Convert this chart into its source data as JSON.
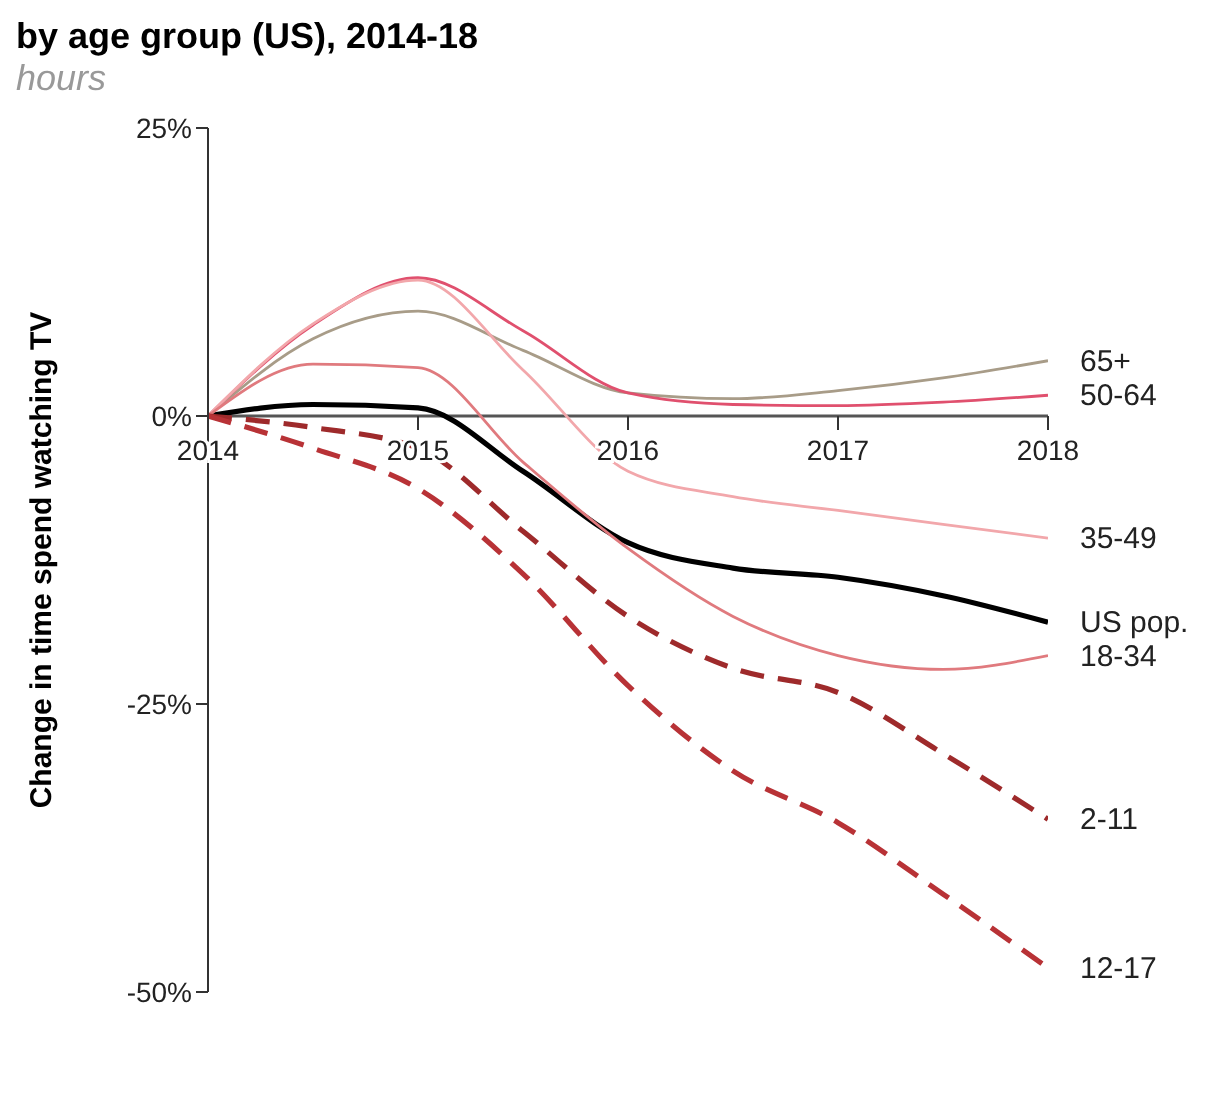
{
  "chart_data": {
    "type": "line",
    "title": "by age group (US), 2014-18",
    "subtitle": "hours",
    "ylabel": "Change in time spend watching TV",
    "x": [
      2014,
      2014.5,
      2015,
      2015.5,
      2016,
      2016.5,
      2017,
      2017.5,
      2018
    ],
    "xlim": [
      2014,
      2018
    ],
    "xticks": [
      2014,
      2015,
      2016,
      2017,
      2018
    ],
    "ylim": [
      -50,
      25
    ],
    "yticks": [
      {
        "value": -50,
        "label": "-50%"
      },
      {
        "value": -25,
        "label": "-25%"
      },
      {
        "value": 0,
        "label": "0%"
      },
      {
        "value": 25,
        "label": "25%"
      }
    ],
    "grid": false,
    "legend": false,
    "marker": "none",
    "series": [
      {
        "name": "65+",
        "color": "#a89c88",
        "values": [
          0,
          6.7,
          9.1,
          5.7,
          2,
          1.5,
          2.2,
          3.3,
          4.8
        ]
      },
      {
        "name": "50-64",
        "color": "#e0506e",
        "values": [
          0,
          7.9,
          12,
          7.4,
          2,
          1,
          0.9,
          1.2,
          1.8
        ]
      },
      {
        "name": "35-49",
        "color": "#f2a7ab",
        "values": [
          0,
          8,
          11.8,
          4,
          -4.8,
          -7,
          -8.2,
          -9.4,
          -10.6
        ]
      },
      {
        "name": "US pop.",
        "color": "#000000",
        "values": [
          0,
          1,
          0.7,
          -4.8,
          -11,
          -13.2,
          -14,
          -15.6,
          -17.9
        ]
      },
      {
        "name": "18-34",
        "color": "#e07a7e",
        "values": [
          0,
          4.5,
          4.2,
          -4,
          -11.5,
          -17.4,
          -20.8,
          -22,
          -20.8
        ]
      },
      {
        "name": "2-11",
        "color": "#9e2a2b",
        "line_style": "dashed",
        "values": [
          0,
          -1,
          -2.8,
          -10,
          -17.4,
          -21.9,
          -24,
          -29.3,
          -35
        ]
      },
      {
        "name": "12-17",
        "color": "#b83236",
        "line_style": "dashed",
        "values": [
          0,
          -2.8,
          -6.3,
          -13.7,
          -23.4,
          -30.8,
          -35.3,
          -41.5,
          -47.9
        ]
      }
    ]
  }
}
